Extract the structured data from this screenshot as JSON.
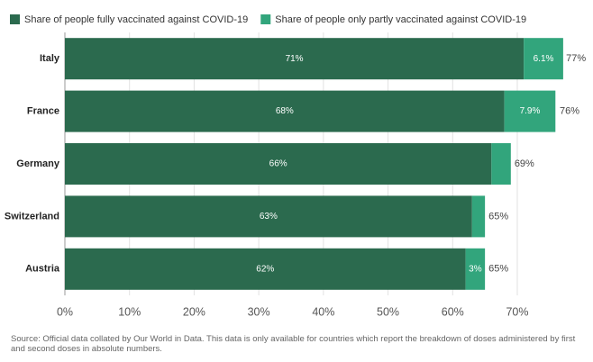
{
  "chart_data": {
    "type": "stacked-bar-horizontal",
    "categories": [
      "Italy",
      "France",
      "Germany",
      "Switzerland",
      "Austria"
    ],
    "series": [
      {
        "name": "Share of people fully vaccinated against COVID-19",
        "color": "#2b6a4e",
        "values": [
          71,
          68,
          66,
          63,
          62
        ],
        "value_labels": [
          "71%",
          "68%",
          "66%",
          "63%",
          "62%"
        ]
      },
      {
        "name": "Share of people only partly vaccinated against COVID-19",
        "color": "#32a57c",
        "values": [
          6.1,
          7.9,
          3,
          2,
          3
        ],
        "value_labels": [
          "6.1%",
          "7.9%",
          null,
          null,
          "3%"
        ]
      }
    ],
    "totals": {
      "values": [
        77,
        76,
        69,
        65,
        65
      ],
      "value_labels": [
        "77%",
        "76%",
        "69%",
        "65%",
        "65%"
      ]
    },
    "xlim": [
      0,
      80.6
    ],
    "xticks": [
      {
        "value": 0,
        "label": "0%"
      },
      {
        "value": 10,
        "label": "10%"
      },
      {
        "value": 20,
        "label": "20%"
      },
      {
        "value": 30,
        "label": "30%"
      },
      {
        "value": 40,
        "label": "40%"
      },
      {
        "value": 50,
        "label": "50%"
      },
      {
        "value": 60,
        "label": "60%"
      },
      {
        "value": 70,
        "label": "70%"
      }
    ],
    "grid": true,
    "source": "Source: Official data collated by Our World in Data. This data is only available for countries which report the breakdown of doses administered by first and second doses in absolute numbers."
  }
}
